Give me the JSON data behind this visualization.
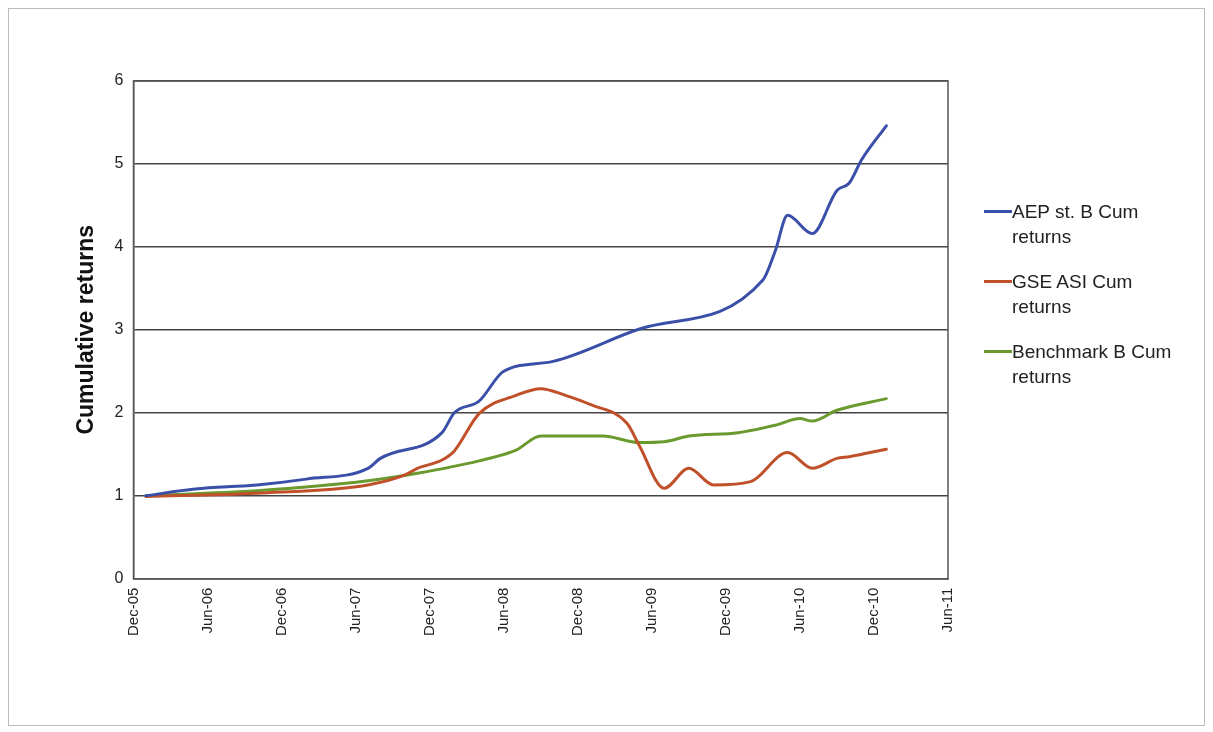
{
  "chart_data": {
    "type": "line",
    "ylabel": "Cumulative returns",
    "xlim": [
      "2005-12",
      "2011-06"
    ],
    "ylim": [
      0,
      6
    ],
    "yticks": [
      0,
      1,
      2,
      3,
      4,
      5,
      6
    ],
    "xticks": [
      {
        "value": "2005-12",
        "label": "Dec-05"
      },
      {
        "value": "2006-06",
        "label": "Jun-06"
      },
      {
        "value": "2006-12",
        "label": "Dec-06"
      },
      {
        "value": "2007-06",
        "label": "Jun-07"
      },
      {
        "value": "2007-12",
        "label": "Dec-07"
      },
      {
        "value": "2008-06",
        "label": "Jun-08"
      },
      {
        "value": "2008-12",
        "label": "Dec-08"
      },
      {
        "value": "2009-06",
        "label": "Jun-09"
      },
      {
        "value": "2009-12",
        "label": "Dec-09"
      },
      {
        "value": "2010-06",
        "label": "Jun-10"
      },
      {
        "value": "2010-12",
        "label": "Dec-10"
      },
      {
        "value": "2011-06",
        "label": "Jun-11"
      }
    ],
    "grid": "y",
    "legend": "right",
    "marker": "none",
    "line_style": "solid",
    "series": [
      {
        "name": "AEP st. B Cum returns",
        "color": "#3a4fa8",
        "x": [
          "2006-01",
          "2006-05",
          "2006-10",
          "2007-02",
          "2007-07",
          "2007-08",
          "2008-01",
          "2008-02",
          "2008-04",
          "2008-06",
          "2008-10",
          "2009-05",
          "2010-03",
          "2010-04",
          "2010-05",
          "2010-07",
          "2010-09",
          "2010-10",
          "2010-11",
          "2011-01"
        ],
        "values": [
          1.0,
          1.08,
          1.13,
          1.2,
          1.33,
          1.45,
          1.76,
          2.0,
          2.14,
          2.5,
          2.62,
          3.01,
          3.6,
          3.95,
          4.38,
          4.16,
          4.68,
          4.77,
          5.05,
          5.46
        ]
      },
      {
        "name": "GSE ASI Cum returns",
        "color": "#c0502a",
        "x": [
          "2006-01",
          "2006-10",
          "2007-07",
          "2007-10",
          "2007-11",
          "2008-01",
          "2008-02",
          "2008-04",
          "2008-07",
          "2008-09",
          "2008-11",
          "2009-01",
          "2009-04",
          "2009-05",
          "2009-07",
          "2009-09",
          "2009-11",
          "2010-02",
          "2010-05",
          "2010-07",
          "2010-09",
          "2010-10",
          "2011-01"
        ],
        "values": [
          0.99,
          1.03,
          1.13,
          1.25,
          1.33,
          1.43,
          1.54,
          1.99,
          2.21,
          2.29,
          2.21,
          2.1,
          1.87,
          1.6,
          1.09,
          1.33,
          1.13,
          1.17,
          1.52,
          1.33,
          1.45,
          1.47,
          1.56
        ]
      },
      {
        "name": "Benchmark B Cum returns",
        "color": "#6a9a2e",
        "x": [
          "2006-01",
          "2006-10",
          "2007-07",
          "2007-11",
          "2008-04",
          "2008-07",
          "2008-09",
          "2009-02",
          "2009-05",
          "2009-07",
          "2009-09",
          "2010-01",
          "2010-04",
          "2010-06",
          "2010-07",
          "2010-09",
          "2011-01"
        ],
        "values": [
          1.0,
          1.06,
          1.18,
          1.27,
          1.42,
          1.55,
          1.72,
          1.72,
          1.64,
          1.65,
          1.72,
          1.76,
          1.85,
          1.93,
          1.9,
          2.03,
          2.17
        ]
      }
    ]
  }
}
